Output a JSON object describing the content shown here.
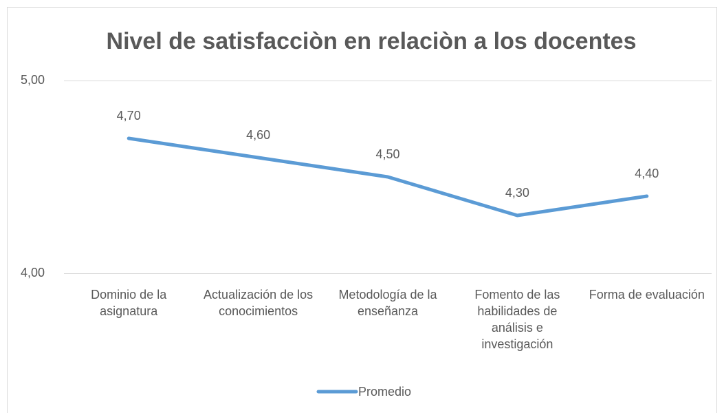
{
  "chart_data": {
    "type": "line",
    "title": "Nivel de satisfacciòn en relaciòn a los docentes",
    "categories": [
      "Dominio de la asignatura",
      "Actualización de los conocimientos",
      "Metodología de la enseñanza",
      "Fomento de las habilidades de análisis e investigación",
      "Forma de evaluación"
    ],
    "series": [
      {
        "name": "Promedio",
        "color": "#5b9bd5",
        "values": [
          4.7,
          4.6,
          4.5,
          4.3,
          4.4
        ],
        "value_labels": [
          "4,70",
          "4,60",
          "4,50",
          "4,30",
          "4,40"
        ]
      }
    ],
    "ylim": [
      4,
      5
    ],
    "yticks": [
      {
        "value": 4,
        "label": "4,00"
      },
      {
        "value": 5,
        "label": "5,00"
      }
    ],
    "grid": true,
    "legend": "bottom"
  }
}
